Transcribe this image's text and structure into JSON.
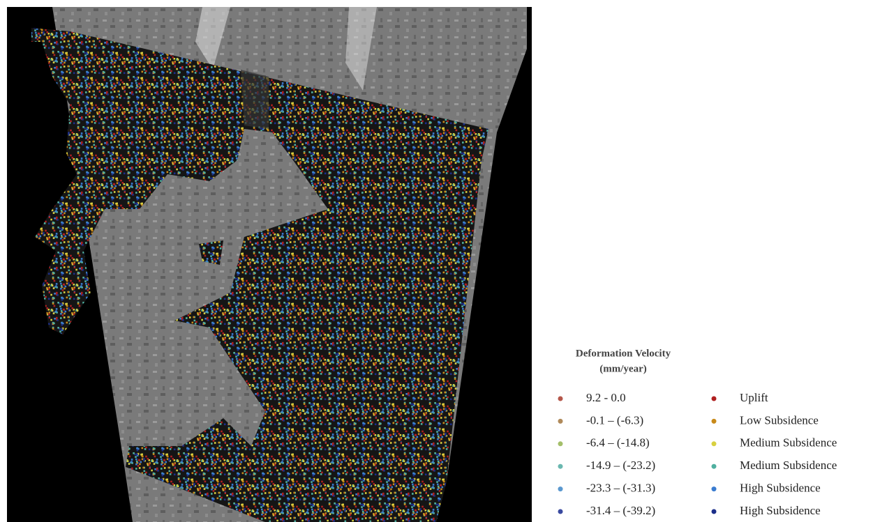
{
  "legend": {
    "title": "Deformation Velocity",
    "unit": "(mm/year)",
    "items": [
      {
        "range": "9.2 - 0.0",
        "color": "#b5574a",
        "class": "Uplift",
        "class_color": "#b02020"
      },
      {
        "range": "-0.1 – (-6.3)",
        "color": "#b08a5a",
        "class": "Low Subsidence",
        "class_color": "#c88a1a"
      },
      {
        "range": "-6.4 – (-14.8)",
        "color": "#a4bf6a",
        "class": "Medium Subsidence",
        "class_color": "#d8d040"
      },
      {
        "range": "-14.9 – (-23.2)",
        "color": "#6ab8b0",
        "class": "Medium Subsidence",
        "class_color": "#50b0a0"
      },
      {
        "range": "-23.3 – (-31.3)",
        "color": "#5a98cf",
        "class": "High Subsidence",
        "class_color": "#3a7cd0"
      },
      {
        "range": "-31.4 – (-39.2)",
        "color": "#3a4aa0",
        "class": "High Subsidence",
        "class_color": "#1c2f8a"
      }
    ]
  }
}
